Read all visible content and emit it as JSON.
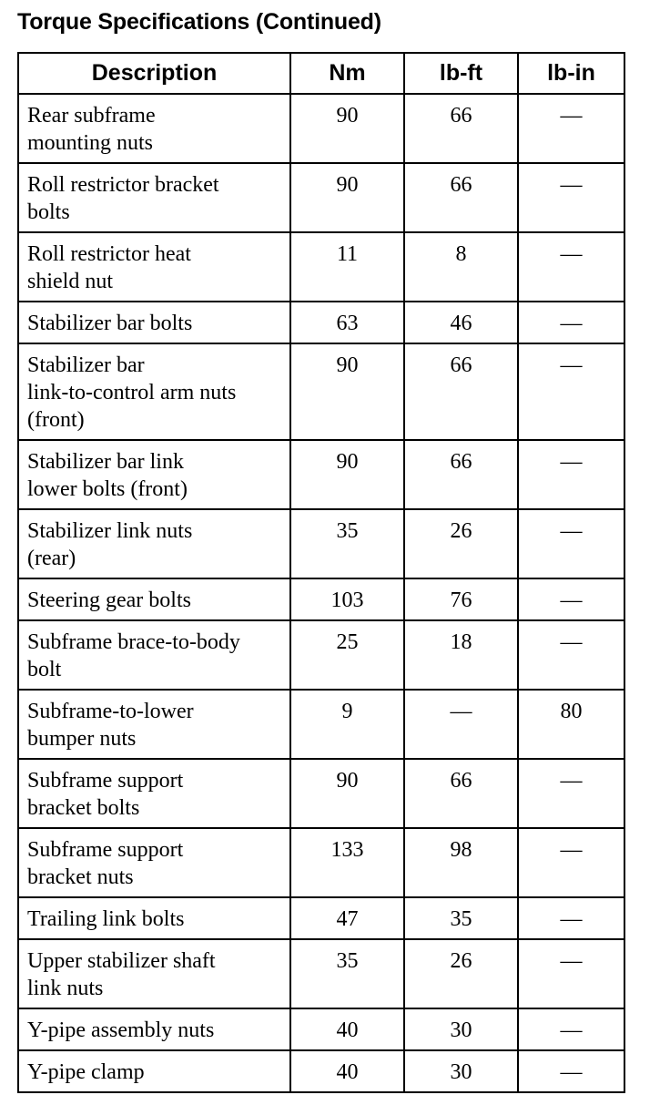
{
  "title": "Torque Specifications (Continued)",
  "table": {
    "headers": [
      "Description",
      "Nm",
      "lb-ft",
      "lb-in"
    ],
    "rows": [
      {
        "description": [
          "Rear subframe",
          "mounting nuts"
        ],
        "nm": "90",
        "lbft": "66",
        "lbin": "—"
      },
      {
        "description": [
          "Roll restrictor bracket",
          "bolts"
        ],
        "nm": "90",
        "lbft": "66",
        "lbin": "—"
      },
      {
        "description": [
          "Roll restrictor heat",
          "shield nut"
        ],
        "nm": "11",
        "lbft": "8",
        "lbin": "—"
      },
      {
        "description": [
          "Stabilizer bar bolts"
        ],
        "nm": "63",
        "lbft": "46",
        "lbin": "—"
      },
      {
        "description": [
          "Stabilizer bar",
          "link-to-control arm nuts",
          "(front)"
        ],
        "nm": "90",
        "lbft": "66",
        "lbin": "—"
      },
      {
        "description": [
          "Stabilizer bar link",
          "lower bolts (front)"
        ],
        "nm": "90",
        "lbft": "66",
        "lbin": "—"
      },
      {
        "description": [
          "Stabilizer link nuts",
          "(rear)"
        ],
        "nm": "35",
        "lbft": "26",
        "lbin": "—"
      },
      {
        "description": [
          "Steering gear bolts"
        ],
        "nm": "103",
        "lbft": "76",
        "lbin": "—"
      },
      {
        "description": [
          "Subframe brace-to-body",
          "bolt"
        ],
        "nm": "25",
        "lbft": "18",
        "lbin": "—"
      },
      {
        "description": [
          "Subframe-to-lower",
          "bumper nuts"
        ],
        "nm": "9",
        "lbft": "—",
        "lbin": "80"
      },
      {
        "description": [
          "Subframe support",
          "bracket bolts"
        ],
        "nm": "90",
        "lbft": "66",
        "lbin": "—"
      },
      {
        "description": [
          "Subframe support",
          "bracket nuts"
        ],
        "nm": "133",
        "lbft": "98",
        "lbin": "—"
      },
      {
        "description": [
          "Trailing link bolts"
        ],
        "nm": "47",
        "lbft": "35",
        "lbin": "—"
      },
      {
        "description": [
          "Upper stabilizer shaft",
          "link nuts"
        ],
        "nm": "35",
        "lbft": "26",
        "lbin": "—"
      },
      {
        "description": [
          "Y-pipe assembly nuts"
        ],
        "nm": "40",
        "lbft": "30",
        "lbin": "—"
      },
      {
        "description": [
          "Y-pipe clamp"
        ],
        "nm": "40",
        "lbft": "30",
        "lbin": "—"
      }
    ]
  }
}
